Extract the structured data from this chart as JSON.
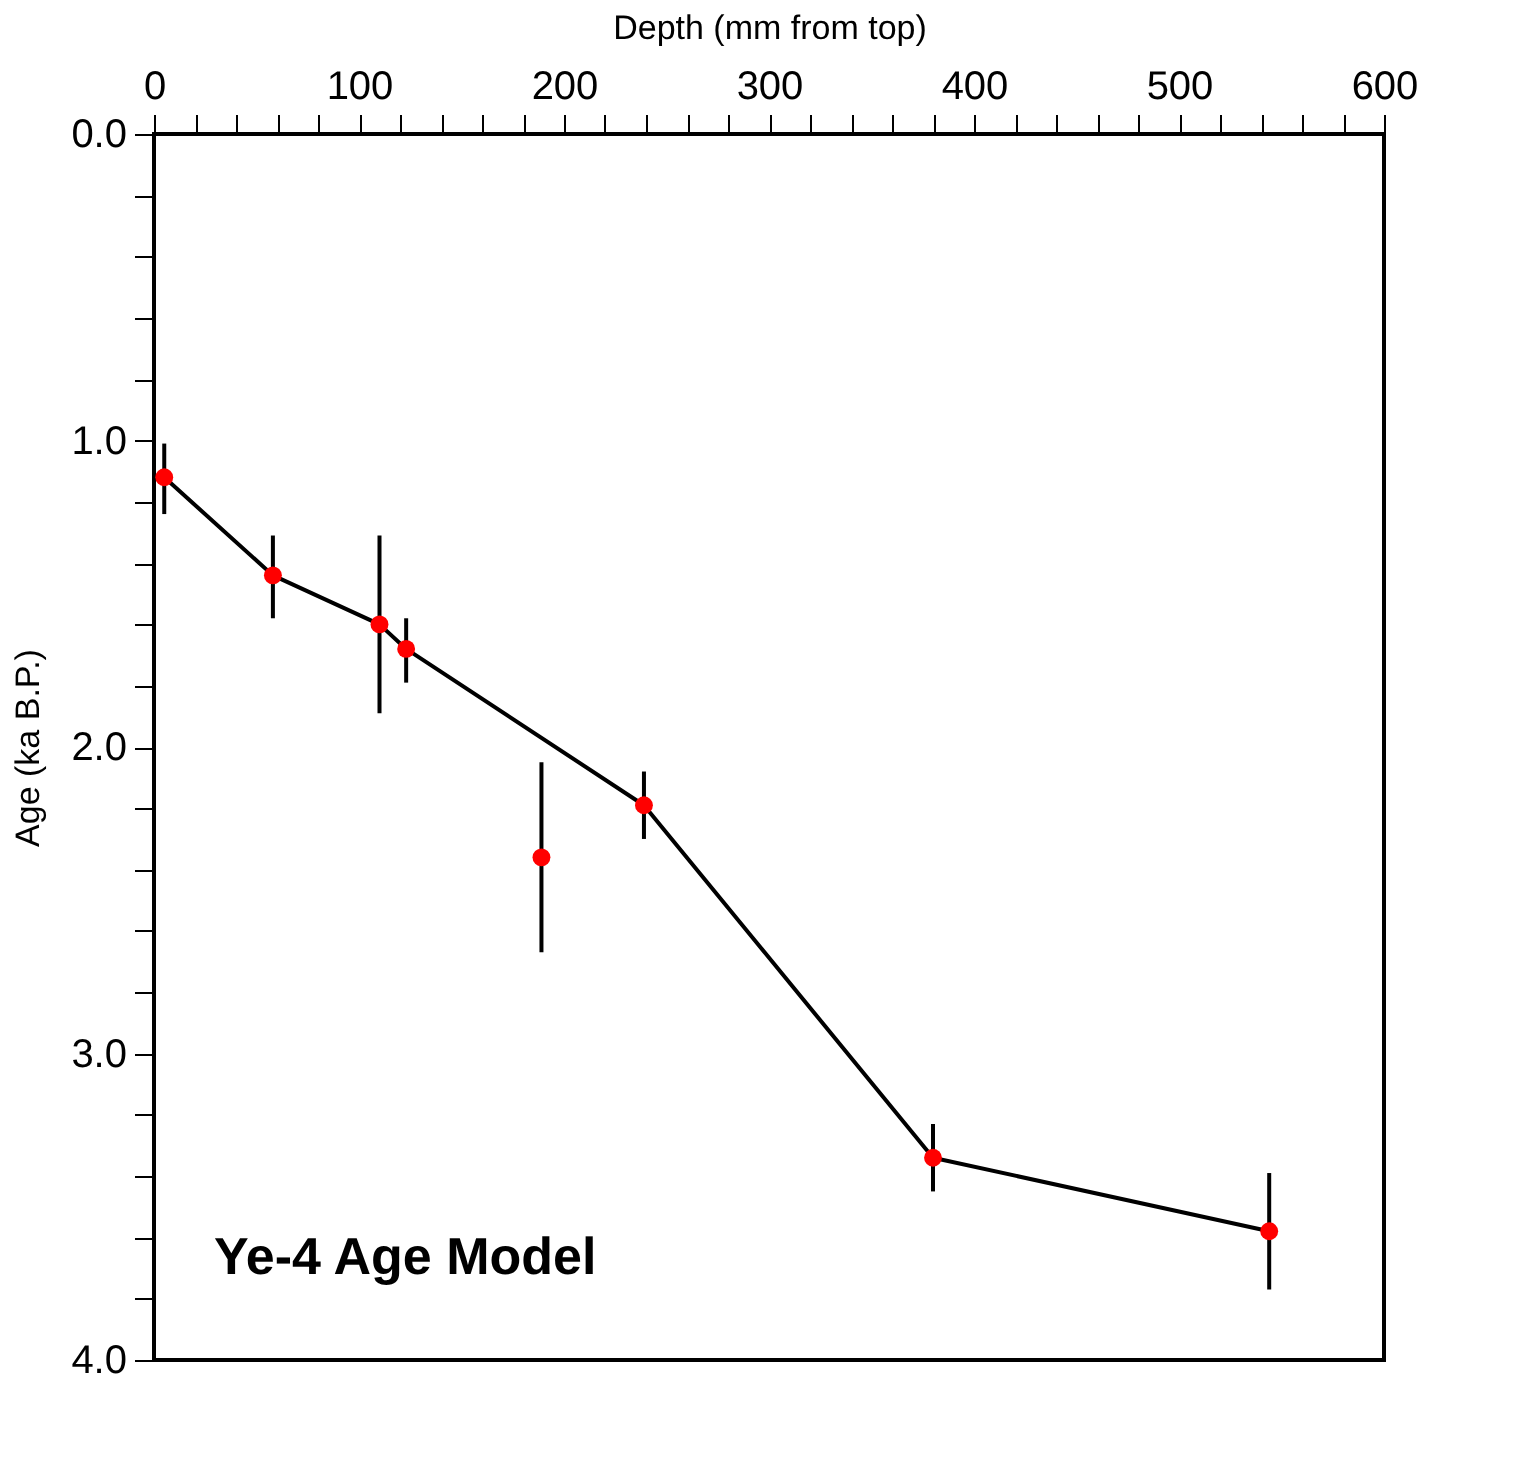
{
  "chart_data": {
    "type": "scatter",
    "xlabel": "Depth (mm from top)",
    "ylabel": "Age (ka B.P.)",
    "annotations": [
      "Ye-4 Age Model"
    ],
    "series": [
      {
        "type": "line",
        "color": "#000000",
        "marker": "none",
        "x": [
          5,
          58,
          110,
          123,
          239,
          380,
          544
        ],
        "values": [
          1.12,
          1.44,
          1.6,
          1.68,
          2.19,
          3.34,
          3.58
        ]
      },
      {
        "color": "#ff0000",
        "marker": "circle",
        "x": [
          5,
          58,
          110,
          123,
          189,
          239,
          380,
          544
        ],
        "values": [
          1.12,
          1.44,
          1.6,
          1.68,
          2.36,
          2.19,
          3.34,
          3.58
        ],
        "errors": [
          [
            1.01,
            1.24
          ],
          [
            1.31,
            1.58
          ],
          [
            1.31,
            1.89
          ],
          [
            1.58,
            1.79
          ],
          [
            2.05,
            2.67
          ],
          [
            2.08,
            2.3
          ],
          [
            3.23,
            3.45
          ],
          [
            3.39,
            3.77
          ]
        ]
      }
    ],
    "xlim": [
      0,
      600
    ],
    "xticks": [
      0,
      {
        "value": 20,
        "label": null
      },
      {
        "value": 40,
        "label": null
      },
      {
        "value": 60,
        "label": null
      },
      {
        "value": 80,
        "label": null
      },
      100,
      {
        "value": 120,
        "label": null
      },
      {
        "value": 140,
        "label": null
      },
      {
        "value": 160,
        "label": null
      },
      {
        "value": 180,
        "label": null
      },
      200,
      {
        "value": 220,
        "label": null
      },
      {
        "value": 240,
        "label": null
      },
      {
        "value": 260,
        "label": null
      },
      {
        "value": 280,
        "label": null
      },
      300,
      {
        "value": 320,
        "label": null
      },
      {
        "value": 340,
        "label": null
      },
      {
        "value": 360,
        "label": null
      },
      {
        "value": 380,
        "label": null
      },
      400,
      {
        "value": 420,
        "label": null
      },
      {
        "value": 440,
        "label": null
      },
      {
        "value": 460,
        "label": null
      },
      {
        "value": 480,
        "label": null
      },
      500,
      {
        "value": 520,
        "label": null
      },
      {
        "value": 540,
        "label": null
      },
      {
        "value": 560,
        "label": null
      },
      {
        "value": 580,
        "label": null
      },
      600
    ],
    "ylim": [
      4.0,
      0.0
    ],
    "yticks": [
      {
        "value": 0,
        "label": "0.0"
      },
      {
        "value": 0.2,
        "label": null
      },
      {
        "value": 0.4,
        "label": null
      },
      {
        "value": 0.6,
        "label": null
      },
      {
        "value": 0.8,
        "label": null
      },
      {
        "value": 1,
        "label": "1.0"
      },
      {
        "value": 1.2,
        "label": null
      },
      {
        "value": 1.4,
        "label": null
      },
      {
        "value": 1.6,
        "label": null
      },
      {
        "value": 1.8,
        "label": null
      },
      {
        "value": 2,
        "label": "2.0"
      },
      {
        "value": 2.2,
        "label": null
      },
      {
        "value": 2.4,
        "label": null
      },
      {
        "value": 2.6,
        "label": null
      },
      {
        "value": 2.8,
        "label": null
      },
      {
        "value": 3,
        "label": "3.0"
      },
      {
        "value": 3.2,
        "label": null
      },
      {
        "value": 3.4,
        "label": null
      },
      {
        "value": 3.6,
        "label": null
      },
      {
        "value": 3.8,
        "label": null
      },
      {
        "value": 4,
        "label": "4.0"
      }
    ]
  }
}
